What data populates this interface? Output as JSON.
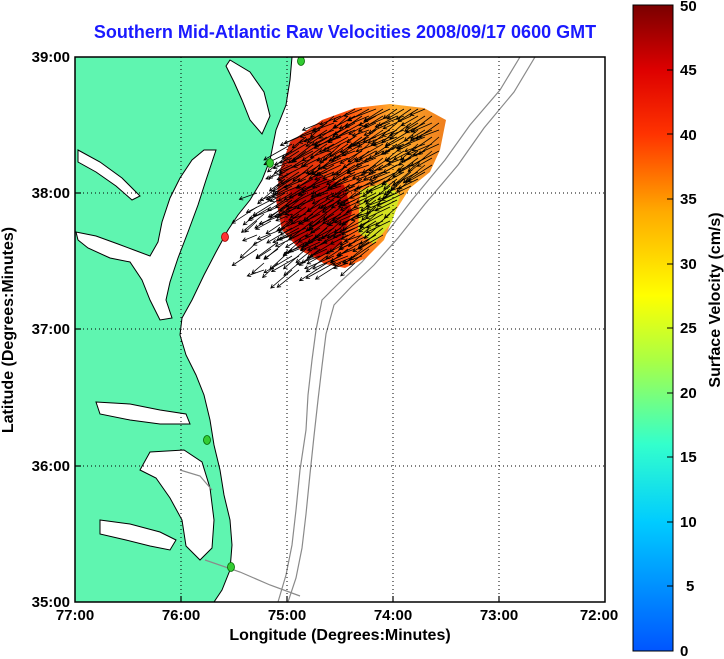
{
  "title": "Southern Mid-Atlantic Raw Velocities 2008/09/17 0600 GMT",
  "axes": {
    "xlabel": "Longitude (Degrees:Minutes)",
    "ylabel": "Latitude (Degrees:Minutes)",
    "x_ticks": [
      "77:00",
      "76:00",
      "75:00",
      "74:00",
      "73:00",
      "72:00"
    ],
    "y_ticks": [
      "39:00",
      "38:00",
      "37:00",
      "36:00",
      "35:00"
    ],
    "x_range": [
      -77,
      -72
    ],
    "y_range": [
      35,
      39
    ],
    "grid": true
  },
  "colorbar": {
    "label": "Surface Velocity (cm/s)",
    "ticks": [
      "50",
      "45",
      "40",
      "35",
      "30",
      "25",
      "20",
      "15",
      "10",
      "5",
      "0"
    ],
    "range": [
      0,
      50
    ],
    "colormap": "jet"
  },
  "colors": {
    "land": "#5ff5b0",
    "ocean": "#ffffff",
    "coastline": "#000000",
    "bathymetry": "#8a8a8a",
    "station_active": "#33cc33",
    "station_inactive": "#ff3333",
    "title": "#1a1aff"
  }
}
